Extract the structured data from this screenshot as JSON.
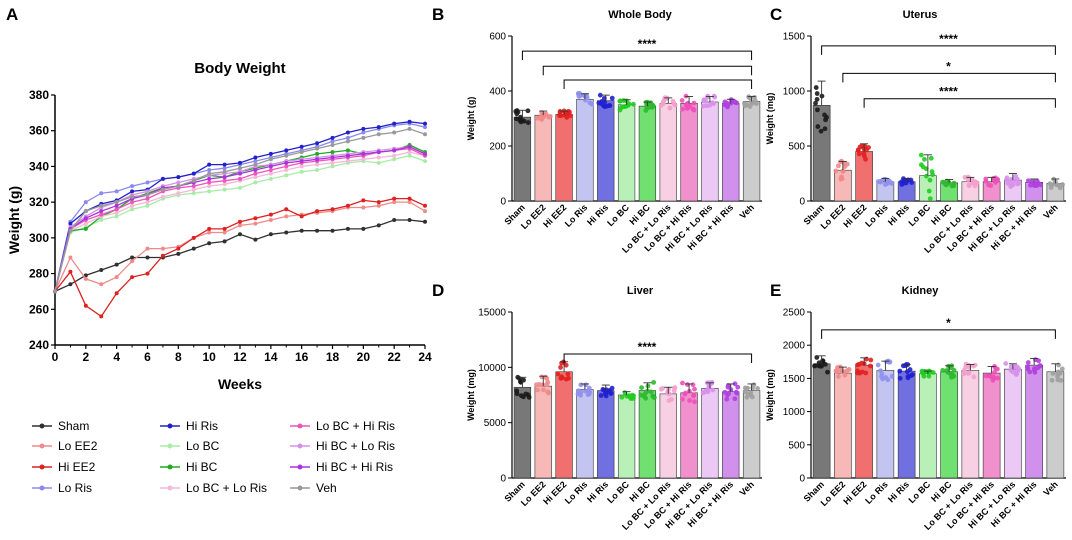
{
  "panels": {
    "A": {
      "letter": "A",
      "chart_data": {
        "type": "line",
        "title": "Body Weight",
        "xlabel": "Weeks",
        "ylabel": "Weight (g)",
        "xlim": [
          0,
          24
        ],
        "ylim": [
          240,
          380
        ],
        "xticks": [
          0,
          2,
          4,
          6,
          8,
          10,
          12,
          14,
          16,
          18,
          20,
          22,
          24
        ],
        "yticks": [
          240,
          260,
          280,
          300,
          320,
          340,
          360,
          380
        ],
        "x": [
          0,
          1,
          2,
          3,
          4,
          5,
          6,
          7,
          8,
          9,
          10,
          11,
          12,
          13,
          14,
          15,
          16,
          17,
          18,
          19,
          20,
          21,
          22,
          23,
          24
        ],
        "series": [
          {
            "name": "Sham",
            "color": "#303030",
            "values": [
              270,
              274,
              279,
              282,
              285,
              289,
              289,
              289,
              291,
              294,
              297,
              298,
              302,
              299,
              302,
              303,
              304,
              304,
              304,
              305,
              305,
              307,
              310,
              310,
              309
            ]
          },
          {
            "name": "Lo EE2",
            "color": "#f08a8a",
            "values": [
              270,
              289,
              277,
              274,
              278,
              287,
              294,
              294,
              295,
              300,
              303,
              303,
              307,
              308,
              310,
              312,
              313,
              314,
              315,
              317,
              317,
              318,
              320,
              320,
              315
            ]
          },
          {
            "name": "Hi EE2",
            "color": "#dd2222",
            "values": [
              270,
              281,
              262,
              256,
              269,
              278,
              280,
              290,
              294,
              300,
              305,
              305,
              309,
              311,
              313,
              316,
              312,
              315,
              316,
              318,
              321,
              320,
              322,
              322,
              318
            ]
          },
          {
            "name": "Lo Ris",
            "color": "#8a8aee",
            "values": [
              270,
              309,
              320,
              325,
              326,
              329,
              331,
              333,
              334,
              336,
              338,
              339,
              341,
              343,
              345,
              347,
              349,
              351,
              354,
              356,
              359,
              361,
              363,
              364,
              362
            ]
          },
          {
            "name": "Hi Ris",
            "color": "#2222cc",
            "values": [
              270,
              308,
              315,
              319,
              321,
              326,
              327,
              333,
              334,
              336,
              341,
              341,
              342,
              345,
              347,
              349,
              351,
              353,
              356,
              359,
              361,
              362,
              364,
              365,
              364
            ]
          },
          {
            "name": "Lo BC",
            "color": "#a8eca8",
            "values": [
              270,
              303,
              306,
              310,
              312,
              316,
              318,
              322,
              324,
              325,
              326,
              327,
              328,
              331,
              333,
              335,
              337,
              338,
              340,
              342,
              343,
              342,
              344,
              346,
              343
            ]
          },
          {
            "name": "Hi BC",
            "color": "#22aa22",
            "values": [
              270,
              304,
              305,
              312,
              316,
              322,
              325,
              328,
              329,
              332,
              335,
              334,
              337,
              339,
              341,
              343,
              345,
              347,
              348,
              349,
              347,
              348,
              349,
              352,
              348
            ]
          },
          {
            "name": "Lo BC + Lo Ris",
            "color": "#f4b8d8",
            "values": [
              270,
              304,
              308,
              312,
              314,
              318,
              320,
              323,
              325,
              327,
              329,
              330,
              332,
              334,
              336,
              338,
              340,
              341,
              342,
              343,
              344,
              345,
              346,
              348,
              346
            ]
          },
          {
            "name": "Lo BC + Hi Ris",
            "color": "#ee55bb",
            "values": [
              270,
              305,
              310,
              313,
              316,
              320,
              322,
              326,
              328,
              329,
              331,
              332,
              333,
              336,
              338,
              340,
              342,
              343,
              344,
              345,
              346,
              348,
              349,
              350,
              346
            ]
          },
          {
            "name": "Hi BC + Lo Ris",
            "color": "#d690e8",
            "values": [
              270,
              306,
              312,
              317,
              320,
              324,
              326,
              329,
              331,
              333,
              335,
              336,
              337,
              340,
              341,
              343,
              344,
              345,
              346,
              347,
              348,
              349,
              350,
              351,
              347
            ]
          },
          {
            "name": "Hi BC + Hi Ris",
            "color": "#aa33dd",
            "values": [
              270,
              305,
              311,
              315,
              318,
              322,
              324,
              328,
              329,
              331,
              333,
              334,
              336,
              338,
              340,
              342,
              343,
              344,
              345,
              346,
              347,
              348,
              349,
              351,
              347
            ]
          },
          {
            "name": "Veh",
            "color": "#999999",
            "values": [
              270,
              304,
              315,
              318,
              320,
              323,
              324,
              327,
              329,
              332,
              336,
              337,
              339,
              341,
              344,
              346,
              348,
              350,
              352,
              354,
              356,
              358,
              359,
              361,
              358
            ]
          }
        ]
      }
    },
    "categories": [
      "Sham",
      "Lo EE2",
      "Hi EE2",
      "Lo Ris",
      "Hi Ris",
      "Lo BC",
      "Hi BC",
      "Lo BC + Lo Ris",
      "Lo BC + Hi Ris",
      "Hi BC + Lo Ris",
      "Hi BC + Hi Ris",
      "Veh"
    ],
    "bar_colors": [
      "#787878",
      "#f7b8b8",
      "#f07070",
      "#c4c4f0",
      "#7070e0",
      "#b8f0b8",
      "#70e070",
      "#f8d0e4",
      "#f090cc",
      "#ecc8f4",
      "#d090ec",
      "#cccccc"
    ],
    "dot_colors": [
      "#1a1a1a",
      "#f08a8a",
      "#e02020",
      "#9090ee",
      "#2020d0",
      "#20cc20",
      "#30b830",
      "#f4a0cc",
      "#ee50b8",
      "#d890ec",
      "#b040e0",
      "#a0a0a0"
    ],
    "B": {
      "letter": "B",
      "chart_data": {
        "type": "bar",
        "title": "Whole Body",
        "ylabel": "Weight (g)",
        "ylim": [
          0,
          600
        ],
        "yticks": [
          0,
          200,
          400,
          600
        ],
        "values": [
          305,
          312,
          315,
          370,
          365,
          350,
          345,
          355,
          355,
          360,
          355,
          362
        ],
        "errors": [
          25,
          15,
          12,
          20,
          20,
          18,
          15,
          20,
          25,
          20,
          15,
          18
        ],
        "brackets": [
          {
            "from": 0,
            "to": 11,
            "level": 545,
            "label": "****"
          },
          {
            "from": 1,
            "to": 11,
            "level": 490,
            "label": ""
          },
          {
            "from": 2,
            "to": 11,
            "level": 440,
            "label": ""
          }
        ]
      }
    },
    "C": {
      "letter": "C",
      "chart_data": {
        "type": "bar",
        "title": "Uterus",
        "ylabel": "Weight (mg)",
        "ylim": [
          0,
          1500
        ],
        "yticks": [
          0,
          500,
          1000,
          1500
        ],
        "values": [
          870,
          280,
          450,
          175,
          175,
          230,
          165,
          175,
          175,
          190,
          170,
          160
        ],
        "errors": [
          220,
          80,
          70,
          30,
          30,
          190,
          30,
          40,
          40,
          60,
          30,
          40
        ],
        "brackets": [
          {
            "from": 0,
            "to": 11,
            "level": 1410,
            "label": "****"
          },
          {
            "from": 1,
            "to": 11,
            "level": 1160,
            "label": "*"
          },
          {
            "from": 2,
            "to": 11,
            "level": 930,
            "label": "****"
          }
        ]
      }
    },
    "D": {
      "letter": "D",
      "chart_data": {
        "type": "bar",
        "title": "Liver",
        "ylabel": "Weight (mg)",
        "ylim": [
          0,
          15000
        ],
        "yticks": [
          0,
          5000,
          10000,
          15000
        ],
        "values": [
          8200,
          8300,
          9600,
          8000,
          7900,
          7500,
          7900,
          7600,
          7700,
          8100,
          7800,
          7900
        ],
        "errors": [
          900,
          900,
          900,
          500,
          500,
          300,
          700,
          600,
          800,
          500,
          700,
          600
        ],
        "brackets": [
          {
            "from": 2,
            "to": 11,
            "level": 11200,
            "label": "****"
          }
        ]
      }
    },
    "E": {
      "letter": "E",
      "chart_data": {
        "type": "bar",
        "title": "Kidney",
        "ylabel": "Weight (mg)",
        "ylim": [
          0,
          2500
        ],
        "yticks": [
          0,
          500,
          1000,
          1500,
          2000,
          2500
        ],
        "values": [
          1720,
          1580,
          1700,
          1620,
          1610,
          1570,
          1600,
          1620,
          1580,
          1640,
          1700,
          1600
        ],
        "errors": [
          120,
          90,
          110,
          140,
          100,
          40,
          90,
          90,
          100,
          80,
          100,
          120
        ],
        "brackets": [
          {
            "from": 0,
            "to": 11,
            "level": 2230,
            "label": "*"
          }
        ]
      }
    }
  }
}
